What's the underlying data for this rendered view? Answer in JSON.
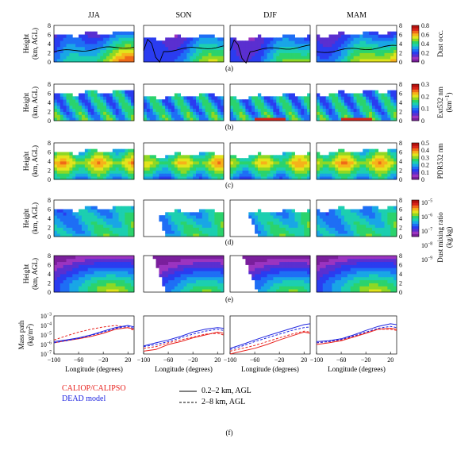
{
  "chart_data": {
    "type": "heatmap",
    "seasons": [
      "JJA",
      "SON",
      "DJF",
      "MAM"
    ],
    "x": {
      "range": [
        -100,
        30
      ],
      "ticks": [
        -100,
        -60,
        -20,
        20
      ],
      "label": "Longitude (degrees)"
    },
    "height_axis": {
      "range": [
        0,
        8
      ],
      "ticks": [
        0,
        2,
        4,
        6,
        8
      ],
      "label_line1": "Height",
      "label_line2": "(km, AGL)"
    },
    "panels": [
      {
        "id": "a",
        "caption": "(a)",
        "colorbar": {
          "label": "Dust occ.",
          "min": 0,
          "max": 0.8,
          "ticks": [
            "0",
            "0.2",
            "0.4",
            "0.6",
            "0.8"
          ],
          "scale": "linear"
        }
      },
      {
        "id": "b",
        "caption": "(b)",
        "colorbar": {
          "label": "Ext532 nm",
          "label_unit": "(km",
          "label_exp": "−1",
          "label_close": ")",
          "min": 0,
          "max": 0.3,
          "ticks": [
            "0",
            "0.1",
            "0.2",
            "0.3"
          ],
          "scale": "linear"
        }
      },
      {
        "id": "c",
        "caption": "(c)",
        "colorbar": {
          "label": "PDR532 nm",
          "min": 0,
          "max": 0.5,
          "ticks": [
            "0",
            "0.1",
            "0.2",
            "0.3",
            "0.4",
            "0.5"
          ],
          "scale": "linear"
        }
      },
      {
        "id": "d",
        "caption": "(d)",
        "colorbar": {
          "label": "Dust mixing ratio",
          "label2": "(kg/kg)",
          "scale": "log",
          "ticks": [
            {
              "base": "10",
              "exp": "−5"
            },
            {
              "base": "10",
              "exp": "−6"
            },
            {
              "base": "10",
              "exp": "−7"
            },
            {
              "base": "10",
              "exp": "−8"
            },
            {
              "base": "10",
              "exp": "−9"
            }
          ]
        }
      },
      {
        "id": "e",
        "caption": "(e)"
      }
    ],
    "mass_path": {
      "caption": "(f)",
      "ylabel_line1": "Mass path",
      "ylabel_line2": "(kg/m",
      "ylabel_exp": "2",
      "ylabel_close": ")",
      "yscale": "log",
      "y_ticks": [
        {
          "base": "10",
          "exp": "−3"
        },
        {
          "base": "10",
          "exp": "−4"
        },
        {
          "base": "10",
          "exp": "−5"
        },
        {
          "base": "10",
          "exp": "−6"
        },
        {
          "base": "10",
          "exp": "−7"
        }
      ],
      "x": [
        -100,
        -80,
        -60,
        -40,
        -20,
        0,
        20,
        30
      ],
      "series": [
        {
          "season": "JJA",
          "source": "CALIOP/CALIPSO",
          "layer": "0.2–2 km, AGL",
          "values": [
            1.5e-06,
            2.5e-06,
            4e-06,
            7e-06,
            1.5e-05,
            4e-05,
            6e-05,
            4e-05
          ]
        },
        {
          "season": "JJA",
          "source": "CALIOP/CALIPSO",
          "layer": "2–8 km, AGL",
          "values": [
            3e-06,
            8e-06,
            2e-05,
            4e-05,
            7e-05,
            0.0001,
            6e-05,
            3e-05
          ]
        },
        {
          "season": "JJA",
          "source": "DEAD model",
          "layer": "0.2–2 km, AGL",
          "values": [
            2e-06,
            3e-06,
            5e-06,
            1e-05,
            2.5e-05,
            6e-05,
            0.0001,
            7e-05
          ]
        },
        {
          "season": "JJA",
          "source": "DEAD model",
          "layer": "2–8 km, AGL",
          "values": [
            1.5e-06,
            2.5e-06,
            4.5e-06,
            9e-06,
            2e-05,
            5e-05,
            8e-05,
            5e-05
          ]
        },
        {
          "season": "SON",
          "source": "CALIOP/CALIPSO",
          "layer": "0.2–2 km, AGL",
          "values": [
            2e-07,
            3e-07,
            1e-06,
            2e-06,
            5e-06,
            1e-05,
            2e-05,
            1.5e-05
          ]
        },
        {
          "season": "SON",
          "source": "CALIOP/CALIPSO",
          "layer": "2–8 km, AGL",
          "values": [
            4e-07,
            6e-07,
            1.5e-06,
            3e-06,
            6e-06,
            1.2e-05,
            1.5e-05,
            1e-05
          ]
        },
        {
          "season": "SON",
          "source": "DEAD model",
          "layer": "0.2–2 km, AGL",
          "values": [
            7e-07,
            1.5e-06,
            3e-06,
            7e-06,
            2e-05,
            4e-05,
            6e-05,
            5e-05
          ]
        },
        {
          "season": "SON",
          "source": "DEAD model",
          "layer": "2–8 km, AGL",
          "values": [
            6e-07,
            1e-06,
            2e-06,
            5e-06,
            1.2e-05,
            2.5e-05,
            4e-05,
            3e-05
          ]
        },
        {
          "season": "DJF",
          "source": "CALIOP/CALIPSO",
          "layer": "0.2–2 km, AGL",
          "values": [
            1e-07,
            2e-07,
            4e-07,
            1e-06,
            3e-06,
            8e-06,
            2e-05,
            1.5e-05
          ]
        },
        {
          "season": "DJF",
          "source": "CALIOP/CALIPSO",
          "layer": "2–8 km, AGL",
          "values": [
            2e-07,
            4e-07,
            8e-07,
            2e-06,
            5e-06,
            1.2e-05,
            2.5e-05,
            2e-05
          ]
        },
        {
          "season": "DJF",
          "source": "DEAD model",
          "layer": "0.2–2 km, AGL",
          "values": [
            4e-07,
            1e-06,
            3e-06,
            8e-06,
            2e-05,
            5e-05,
            0.00012,
            0.00015
          ]
        },
        {
          "season": "DJF",
          "source": "DEAD model",
          "layer": "2–8 km, AGL",
          "values": [
            3e-07,
            7e-07,
            2e-06,
            5e-06,
            1.2e-05,
            3e-05,
            6e-05,
            7e-05
          ]
        },
        {
          "season": "MAM",
          "source": "CALIOP/CALIPSO",
          "layer": "0.2–2 km, AGL",
          "values": [
            1e-06,
            1.5e-06,
            2.5e-06,
            6e-06,
            1.5e-05,
            4e-05,
            5e-05,
            4e-05
          ]
        },
        {
          "season": "MAM",
          "source": "CALIOP/CALIPSO",
          "layer": "2–8 km, AGL",
          "values": [
            1.5e-06,
            2e-06,
            3e-06,
            7e-06,
            1.8e-05,
            4e-05,
            4e-05,
            3e-05
          ]
        },
        {
          "season": "MAM",
          "source": "DEAD model",
          "layer": "0.2–2 km, AGL",
          "values": [
            2e-06,
            2.5e-06,
            4e-06,
            1e-05,
            3e-05,
            8e-05,
            0.00015,
            0.00012
          ]
        },
        {
          "season": "MAM",
          "source": "DEAD model",
          "layer": "2–8 km, AGL",
          "values": [
            1.5e-06,
            2e-06,
            3.5e-06,
            8e-06,
            2e-05,
            5e-05,
            8e-05,
            6e-05
          ]
        }
      ]
    },
    "legend": {
      "sources": [
        {
          "name": "CALIOP/CALIPSO",
          "color": "#e8201c"
        },
        {
          "name": "DEAD model",
          "color": "#1c22e0"
        }
      ],
      "layers": [
        {
          "name": "0.2–2 km, AGL",
          "style": "solid"
        },
        {
          "name": "2–8 km, AGL",
          "style": "dashed"
        }
      ]
    },
    "colormap": [
      "#7a1f9c",
      "#9b34c0",
      "#5a2fd0",
      "#2a3cf0",
      "#1e6ef5",
      "#19a6e6",
      "#1ccfb0",
      "#2bd36c",
      "#8fd824",
      "#e2e41c",
      "#f6b21a",
      "#f06a18",
      "#d8241a",
      "#b3120e"
    ]
  }
}
